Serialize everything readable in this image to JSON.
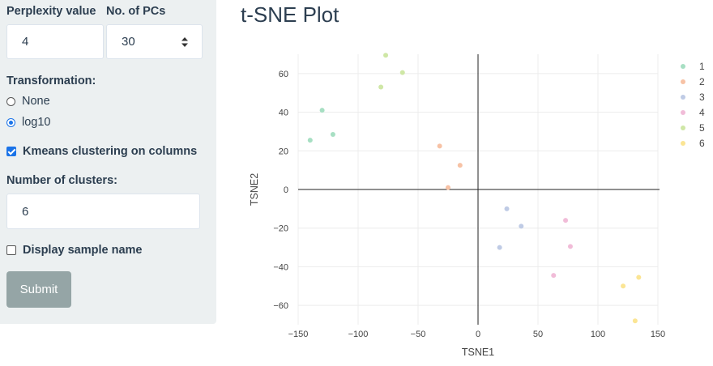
{
  "sidebar": {
    "perplexity": {
      "label": "Perplexity value",
      "value": "4"
    },
    "pcs": {
      "label": "No. of PCs",
      "value": "30"
    },
    "transformation": {
      "label": "Transformation:",
      "options": [
        {
          "label": "None",
          "selected": false
        },
        {
          "label": "log10",
          "selected": true
        }
      ]
    },
    "kmeans": {
      "label": "Kmeans clustering on columns",
      "checked": true
    },
    "clusters": {
      "label": "Number of clusters:",
      "value": "6"
    },
    "display_names": {
      "label": "Display sample name",
      "checked": false
    },
    "submit_label": "Submit"
  },
  "main": {
    "title": "t-SNE Plot"
  },
  "chart_data": {
    "type": "scatter",
    "title": "",
    "xlabel": "TSNE1",
    "ylabel": "TSNE2",
    "xlim": [
      -150,
      150
    ],
    "ylim": [
      -70,
      70
    ],
    "xticks": [
      -150,
      -100,
      -50,
      0,
      50,
      100,
      150
    ],
    "yticks": [
      -60,
      -40,
      -20,
      0,
      20,
      40,
      60
    ],
    "xtick_labels": [
      "−150",
      "−100",
      "−50",
      "0",
      "50",
      "100",
      "150"
    ],
    "ytick_labels": [
      "−60",
      "−40",
      "−20",
      "0",
      "20",
      "40",
      "60"
    ],
    "grid": true,
    "legend_position": "right",
    "series": [
      {
        "name": "1",
        "color": "#a7dfc3",
        "points": [
          [
            -130,
            41
          ],
          [
            -140,
            25.5
          ],
          [
            -121,
            28.5
          ]
        ]
      },
      {
        "name": "2",
        "color": "#f7c2a5",
        "points": [
          [
            -32,
            22.5
          ],
          [
            -15,
            12.5
          ],
          [
            -25,
            1
          ]
        ]
      },
      {
        "name": "3",
        "color": "#bfcbe5",
        "points": [
          [
            24,
            -10
          ],
          [
            36,
            -19
          ],
          [
            18,
            -30
          ]
        ]
      },
      {
        "name": "4",
        "color": "#f1bcd8",
        "points": [
          [
            73,
            -16
          ],
          [
            77,
            -29.5
          ],
          [
            63,
            -44.5
          ]
        ]
      },
      {
        "name": "5",
        "color": "#cfe7a6",
        "points": [
          [
            -77,
            69.5
          ],
          [
            -63,
            60.5
          ],
          [
            -81,
            53
          ]
        ]
      },
      {
        "name": "6",
        "color": "#fbe594",
        "points": [
          [
            134,
            -45.5
          ],
          [
            121,
            -50
          ],
          [
            131,
            -68
          ]
        ]
      }
    ]
  }
}
